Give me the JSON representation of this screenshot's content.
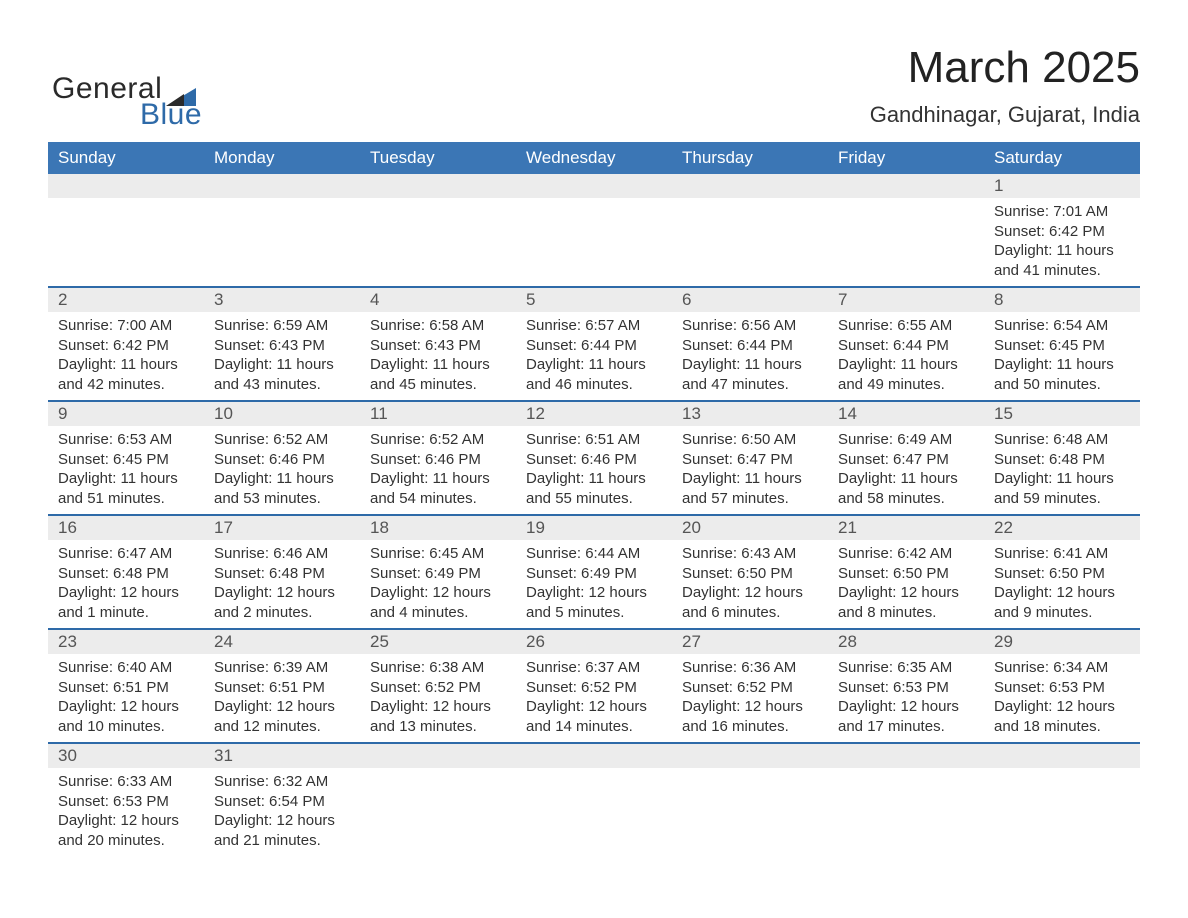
{
  "logo": {
    "text_general": "General",
    "text_blue": "Blue"
  },
  "title": "March 2025",
  "location": "Gandhinagar, Gujarat, India",
  "colors": {
    "header_bg": "#3b76b5",
    "divider": "#2e6aa8",
    "daynum_bg": "#ececec",
    "page_bg": "#ffffff",
    "text": "#333333"
  },
  "day_headers": [
    "Sunday",
    "Monday",
    "Tuesday",
    "Wednesday",
    "Thursday",
    "Friday",
    "Saturday"
  ],
  "weeks": [
    [
      null,
      null,
      null,
      null,
      null,
      null,
      {
        "n": "1",
        "sunrise": "7:01 AM",
        "sunset": "6:42 PM",
        "daylight": "11 hours and 41 minutes."
      }
    ],
    [
      {
        "n": "2",
        "sunrise": "7:00 AM",
        "sunset": "6:42 PM",
        "daylight": "11 hours and 42 minutes."
      },
      {
        "n": "3",
        "sunrise": "6:59 AM",
        "sunset": "6:43 PM",
        "daylight": "11 hours and 43 minutes."
      },
      {
        "n": "4",
        "sunrise": "6:58 AM",
        "sunset": "6:43 PM",
        "daylight": "11 hours and 45 minutes."
      },
      {
        "n": "5",
        "sunrise": "6:57 AM",
        "sunset": "6:44 PM",
        "daylight": "11 hours and 46 minutes."
      },
      {
        "n": "6",
        "sunrise": "6:56 AM",
        "sunset": "6:44 PM",
        "daylight": "11 hours and 47 minutes."
      },
      {
        "n": "7",
        "sunrise": "6:55 AM",
        "sunset": "6:44 PM",
        "daylight": "11 hours and 49 minutes."
      },
      {
        "n": "8",
        "sunrise": "6:54 AM",
        "sunset": "6:45 PM",
        "daylight": "11 hours and 50 minutes."
      }
    ],
    [
      {
        "n": "9",
        "sunrise": "6:53 AM",
        "sunset": "6:45 PM",
        "daylight": "11 hours and 51 minutes."
      },
      {
        "n": "10",
        "sunrise": "6:52 AM",
        "sunset": "6:46 PM",
        "daylight": "11 hours and 53 minutes."
      },
      {
        "n": "11",
        "sunrise": "6:52 AM",
        "sunset": "6:46 PM",
        "daylight": "11 hours and 54 minutes."
      },
      {
        "n": "12",
        "sunrise": "6:51 AM",
        "sunset": "6:46 PM",
        "daylight": "11 hours and 55 minutes."
      },
      {
        "n": "13",
        "sunrise": "6:50 AM",
        "sunset": "6:47 PM",
        "daylight": "11 hours and 57 minutes."
      },
      {
        "n": "14",
        "sunrise": "6:49 AM",
        "sunset": "6:47 PM",
        "daylight": "11 hours and 58 minutes."
      },
      {
        "n": "15",
        "sunrise": "6:48 AM",
        "sunset": "6:48 PM",
        "daylight": "11 hours and 59 minutes."
      }
    ],
    [
      {
        "n": "16",
        "sunrise": "6:47 AM",
        "sunset": "6:48 PM",
        "daylight": "12 hours and 1 minute."
      },
      {
        "n": "17",
        "sunrise": "6:46 AM",
        "sunset": "6:48 PM",
        "daylight": "12 hours and 2 minutes."
      },
      {
        "n": "18",
        "sunrise": "6:45 AM",
        "sunset": "6:49 PM",
        "daylight": "12 hours and 4 minutes."
      },
      {
        "n": "19",
        "sunrise": "6:44 AM",
        "sunset": "6:49 PM",
        "daylight": "12 hours and 5 minutes."
      },
      {
        "n": "20",
        "sunrise": "6:43 AM",
        "sunset": "6:50 PM",
        "daylight": "12 hours and 6 minutes."
      },
      {
        "n": "21",
        "sunrise": "6:42 AM",
        "sunset": "6:50 PM",
        "daylight": "12 hours and 8 minutes."
      },
      {
        "n": "22",
        "sunrise": "6:41 AM",
        "sunset": "6:50 PM",
        "daylight": "12 hours and 9 minutes."
      }
    ],
    [
      {
        "n": "23",
        "sunrise": "6:40 AM",
        "sunset": "6:51 PM",
        "daylight": "12 hours and 10 minutes."
      },
      {
        "n": "24",
        "sunrise": "6:39 AM",
        "sunset": "6:51 PM",
        "daylight": "12 hours and 12 minutes."
      },
      {
        "n": "25",
        "sunrise": "6:38 AM",
        "sunset": "6:52 PM",
        "daylight": "12 hours and 13 minutes."
      },
      {
        "n": "26",
        "sunrise": "6:37 AM",
        "sunset": "6:52 PM",
        "daylight": "12 hours and 14 minutes."
      },
      {
        "n": "27",
        "sunrise": "6:36 AM",
        "sunset": "6:52 PM",
        "daylight": "12 hours and 16 minutes."
      },
      {
        "n": "28",
        "sunrise": "6:35 AM",
        "sunset": "6:53 PM",
        "daylight": "12 hours and 17 minutes."
      },
      {
        "n": "29",
        "sunrise": "6:34 AM",
        "sunset": "6:53 PM",
        "daylight": "12 hours and 18 minutes."
      }
    ],
    [
      {
        "n": "30",
        "sunrise": "6:33 AM",
        "sunset": "6:53 PM",
        "daylight": "12 hours and 20 minutes."
      },
      {
        "n": "31",
        "sunrise": "6:32 AM",
        "sunset": "6:54 PM",
        "daylight": "12 hours and 21 minutes."
      },
      null,
      null,
      null,
      null,
      null
    ]
  ],
  "labels": {
    "sunrise": "Sunrise: ",
    "sunset": "Sunset: ",
    "daylight": "Daylight: "
  }
}
